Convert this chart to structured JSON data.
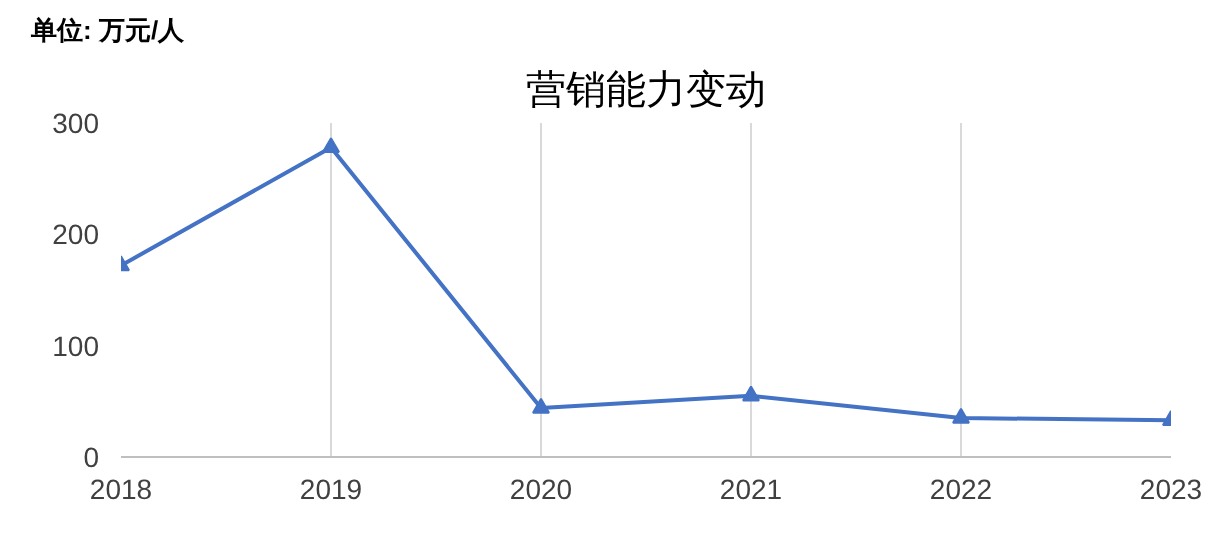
{
  "chart_data": {
    "type": "line",
    "title": "营销能力变动",
    "ylabel": "单位: 万元/人",
    "x": [
      2018,
      2019,
      2020,
      2021,
      2022,
      2023
    ],
    "series": [
      {
        "color": "#4472c4",
        "values": [
          172,
          278,
          44,
          55,
          35,
          33
        ]
      }
    ],
    "xlim": [
      2018,
      2023
    ],
    "xticks": [
      2018,
      2019,
      2020,
      2021,
      2022,
      2023
    ],
    "ylim": [
      0,
      300
    ],
    "yticks": [
      0,
      100,
      200,
      300
    ],
    "grid": "x",
    "marker": "triangle",
    "line_style": "solid"
  }
}
